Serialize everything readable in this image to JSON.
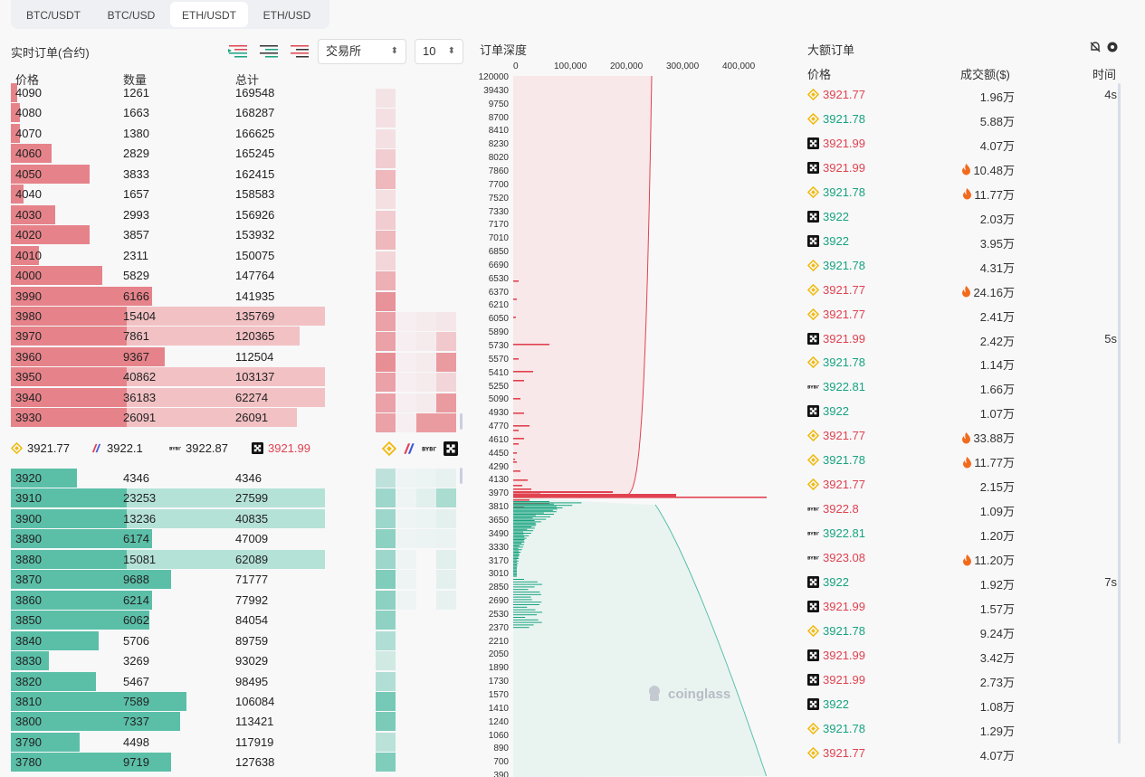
{
  "tabs": [
    "BTC/USDT",
    "BTC/USD",
    "ETH/USDT",
    "ETH/USD"
  ],
  "active_tab": 2,
  "orderbook": {
    "title": "实时订单(合约)",
    "exchange_select": "交易所",
    "depth_select": "10",
    "headers": {
      "price": "价格",
      "qty": "数量",
      "total": "总计"
    },
    "asks": [
      {
        "p": "4090",
        "q": "1261",
        "t": "169548",
        "w": 0.02,
        "w2": 0.02
      },
      {
        "p": "4080",
        "q": "1663",
        "t": "168287",
        "w": 0.03,
        "w2": 0.03
      },
      {
        "p": "4070",
        "q": "1380",
        "t": "166625",
        "w": 0.03,
        "w2": 0.03
      },
      {
        "p": "4060",
        "q": "2829",
        "t": "165245",
        "w": 0.13,
        "w2": 0.13
      },
      {
        "p": "4050",
        "q": "3833",
        "t": "162415",
        "w": 0.25,
        "w2": 0.25
      },
      {
        "p": "4040",
        "q": "1657",
        "t": "158583",
        "w": 0.04,
        "w2": 0.04
      },
      {
        "p": "4030",
        "q": "2993",
        "t": "156926",
        "w": 0.14,
        "w2": 0.14
      },
      {
        "p": "4020",
        "q": "3857",
        "t": "153932",
        "w": 0.25,
        "w2": 0.25
      },
      {
        "p": "4010",
        "q": "2311",
        "t": "150075",
        "w": 0.09,
        "w2": 0.09
      },
      {
        "p": "4000",
        "q": "5829",
        "t": "147764",
        "w": 0.29,
        "w2": 0.29
      },
      {
        "p": "3990",
        "q": "6166",
        "t": "141935",
        "w": 0.45,
        "w2": 0.45
      },
      {
        "p": "3980",
        "q": "15404",
        "t": "135769",
        "w": 0.37,
        "w2": 1.0
      },
      {
        "p": "3970",
        "q": "7861",
        "t": "120365",
        "w": 0.37,
        "w2": 0.92
      },
      {
        "p": "3960",
        "q": "9367",
        "t": "112504",
        "w": 0.49,
        "w2": 0.49
      },
      {
        "p": "3950",
        "q": "40862",
        "t": "103137",
        "w": 0.37,
        "w2": 1.0
      },
      {
        "p": "3940",
        "q": "36183",
        "t": "62274",
        "w": 0.37,
        "w2": 1.0
      },
      {
        "p": "3930",
        "q": "26091",
        "t": "26091",
        "w": 0.37,
        "w2": 0.91
      }
    ],
    "mid": [
      {
        "ex": "binance",
        "price": "3921.77",
        "color": "#222"
      },
      {
        "ex": "bitmex",
        "price": "3922.1",
        "color": "#222"
      },
      {
        "ex": "bybit",
        "price": "3922.87",
        "color": "#222"
      },
      {
        "ex": "okx",
        "price": "3921.99",
        "color": "#e0424f"
      }
    ],
    "bids": [
      {
        "p": "3920",
        "q": "4346",
        "t": "4346",
        "w": 0.21,
        "w2": 0.21
      },
      {
        "p": "3910",
        "q": "23253",
        "t": "27599",
        "w": 0.37,
        "w2": 1.0
      },
      {
        "p": "3900",
        "q": "13236",
        "t": "40835",
        "w": 0.37,
        "w2": 1.0
      },
      {
        "p": "3890",
        "q": "6174",
        "t": "47009",
        "w": 0.45,
        "w2": 0.45
      },
      {
        "p": "3880",
        "q": "15081",
        "t": "62089",
        "w": 0.37,
        "w2": 1.0
      },
      {
        "p": "3870",
        "q": "9688",
        "t": "71777",
        "w": 0.51,
        "w2": 0.51
      },
      {
        "p": "3860",
        "q": "6214",
        "t": "77992",
        "w": 0.45,
        "w2": 0.45
      },
      {
        "p": "3850",
        "q": "6062",
        "t": "84054",
        "w": 0.44,
        "w2": 0.44
      },
      {
        "p": "3840",
        "q": "5706",
        "t": "89759",
        "w": 0.28,
        "w2": 0.28
      },
      {
        "p": "3830",
        "q": "3269",
        "t": "93029",
        "w": 0.12,
        "w2": 0.12
      },
      {
        "p": "3820",
        "q": "5467",
        "t": "98495",
        "w": 0.27,
        "w2": 0.27
      },
      {
        "p": "3810",
        "q": "7589",
        "t": "106084",
        "w": 0.56,
        "w2": 0.56
      },
      {
        "p": "3800",
        "q": "7337",
        "t": "113421",
        "w": 0.54,
        "w2": 0.54
      },
      {
        "p": "3790",
        "q": "4498",
        "t": "117919",
        "w": 0.22,
        "w2": 0.22
      },
      {
        "p": "3780",
        "q": "9719",
        "t": "127638",
        "w": 0.51,
        "w2": 0.51
      }
    ]
  },
  "depth": {
    "title": "订单深度",
    "x_ticks": [
      "0",
      "100,000",
      "200,000",
      "300,000",
      "400,000"
    ],
    "y_ticks": [
      "120000",
      "39430",
      "9750",
      "8700",
      "8410",
      "8230",
      "8020",
      "7860",
      "7700",
      "7520",
      "7330",
      "7170",
      "7010",
      "6850",
      "6690",
      "6530",
      "6370",
      "6210",
      "6050",
      "5890",
      "5730",
      "5570",
      "5410",
      "5250",
      "5090",
      "4930",
      "4770",
      "4610",
      "4450",
      "4290",
      "4130",
      "3970",
      "3810",
      "3650",
      "3490",
      "3330",
      "3170",
      "3010",
      "2850",
      "2690",
      "2530",
      "2370",
      "2210",
      "2050",
      "1890",
      "1730",
      "1570",
      "1410",
      "1240",
      "1060",
      "890",
      "700",
      "390"
    ],
    "watermark": "coinglass"
  },
  "large_orders": {
    "title": "大额订单",
    "headers": {
      "price": "价格",
      "amount": "成交额($)",
      "time": "时间"
    },
    "rows": [
      {
        "ex": "binance",
        "price": "3921.77",
        "side": "down",
        "amt": "1.96万",
        "hot": false,
        "time": "4s"
      },
      {
        "ex": "binance",
        "price": "3921.78",
        "side": "up",
        "amt": "5.88万",
        "hot": false,
        "time": ""
      },
      {
        "ex": "okx",
        "price": "3921.99",
        "side": "down",
        "amt": "4.07万",
        "hot": false,
        "time": ""
      },
      {
        "ex": "okx",
        "price": "3921.99",
        "side": "down",
        "amt": "10.48万",
        "hot": true,
        "time": ""
      },
      {
        "ex": "binance",
        "price": "3921.78",
        "side": "up",
        "amt": "11.77万",
        "hot": true,
        "time": ""
      },
      {
        "ex": "okx",
        "price": "3922",
        "side": "up",
        "amt": "2.03万",
        "hot": false,
        "time": ""
      },
      {
        "ex": "okx",
        "price": "3922",
        "side": "up",
        "amt": "3.95万",
        "hot": false,
        "time": ""
      },
      {
        "ex": "binance",
        "price": "3921.78",
        "side": "up",
        "amt": "4.31万",
        "hot": false,
        "time": ""
      },
      {
        "ex": "binance",
        "price": "3921.77",
        "side": "down",
        "amt": "24.16万",
        "hot": true,
        "time": ""
      },
      {
        "ex": "binance",
        "price": "3921.77",
        "side": "down",
        "amt": "2.41万",
        "hot": false,
        "time": ""
      },
      {
        "ex": "okx",
        "price": "3921.99",
        "side": "down",
        "amt": "2.42万",
        "hot": false,
        "time": "5s"
      },
      {
        "ex": "binance",
        "price": "3921.78",
        "side": "up",
        "amt": "1.14万",
        "hot": false,
        "time": ""
      },
      {
        "ex": "bybit",
        "price": "3922.81",
        "side": "up",
        "amt": "1.66万",
        "hot": false,
        "time": ""
      },
      {
        "ex": "okx",
        "price": "3922",
        "side": "up",
        "amt": "1.07万",
        "hot": false,
        "time": ""
      },
      {
        "ex": "binance",
        "price": "3921.77",
        "side": "down",
        "amt": "33.88万",
        "hot": true,
        "time": ""
      },
      {
        "ex": "binance",
        "price": "3921.78",
        "side": "up",
        "amt": "11.77万",
        "hot": true,
        "time": ""
      },
      {
        "ex": "binance",
        "price": "3921.77",
        "side": "down",
        "amt": "2.15万",
        "hot": false,
        "time": ""
      },
      {
        "ex": "bybit",
        "price": "3922.8",
        "side": "down",
        "amt": "1.09万",
        "hot": false,
        "time": ""
      },
      {
        "ex": "bybit",
        "price": "3922.81",
        "side": "up",
        "amt": "1.20万",
        "hot": false,
        "time": ""
      },
      {
        "ex": "bybit",
        "price": "3923.08",
        "side": "down",
        "amt": "11.20万",
        "hot": true,
        "time": ""
      },
      {
        "ex": "okx",
        "price": "3922",
        "side": "up",
        "amt": "1.92万",
        "hot": false,
        "time": "7s"
      },
      {
        "ex": "okx",
        "price": "3921.99",
        "side": "down",
        "amt": "1.57万",
        "hot": false,
        "time": ""
      },
      {
        "ex": "binance",
        "price": "3921.78",
        "side": "up",
        "amt": "9.24万",
        "hot": false,
        "time": ""
      },
      {
        "ex": "okx",
        "price": "3921.99",
        "side": "down",
        "amt": "3.42万",
        "hot": false,
        "time": ""
      },
      {
        "ex": "okx",
        "price": "3921.99",
        "side": "down",
        "amt": "2.73万",
        "hot": false,
        "time": ""
      },
      {
        "ex": "okx",
        "price": "3922",
        "side": "up",
        "amt": "1.08万",
        "hot": false,
        "time": ""
      },
      {
        "ex": "binance",
        "price": "3921.78",
        "side": "up",
        "amt": "1.29万",
        "hot": false,
        "time": ""
      },
      {
        "ex": "binance",
        "price": "3921.77",
        "side": "down",
        "amt": "4.07万",
        "hot": false,
        "time": ""
      }
    ]
  },
  "colors": {
    "ask": "#e6838a",
    "bid": "#5bbfa8",
    "up": "#18a37f",
    "down": "#e0424f"
  }
}
